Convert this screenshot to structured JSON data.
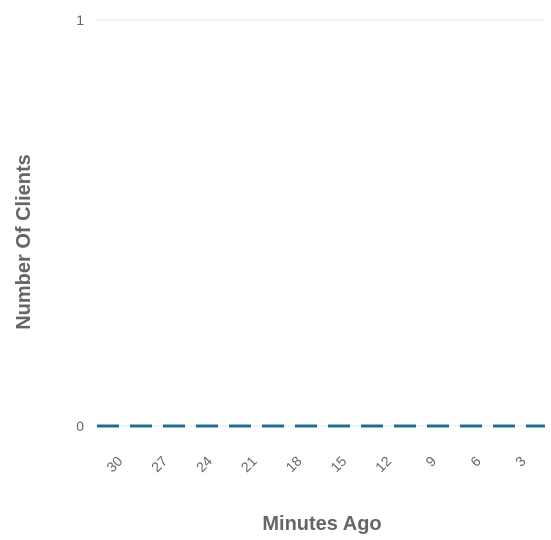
{
  "chart_data": {
    "type": "line",
    "title": "",
    "xlabel": "Minutes Ago",
    "ylabel": "Number Of Clients",
    "categories": [
      "30",
      "27",
      "24",
      "21",
      "18",
      "15",
      "12",
      "9",
      "6",
      "3"
    ],
    "y_ticks": [
      "0",
      "1"
    ],
    "ylim": [
      0,
      1
    ],
    "series": [
      {
        "values": [
          0,
          0,
          0,
          0,
          0,
          0,
          0,
          0,
          0,
          0
        ],
        "color": "#1f6f8f",
        "style": "dashed"
      }
    ],
    "gridline_color": "#e6e6e6",
    "grid": true,
    "legend": "none"
  }
}
